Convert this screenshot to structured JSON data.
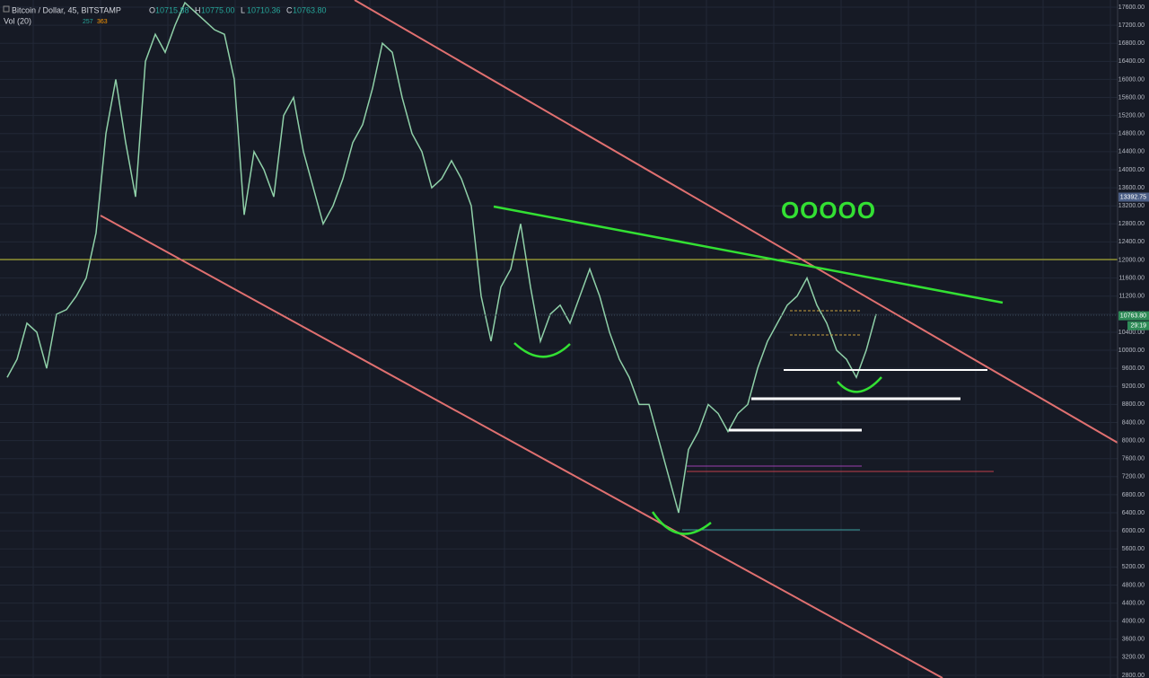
{
  "chart_data": {
    "type": "line",
    "title": "Bitcoin / Dollar, 45, BITSTAMP",
    "ohlc_keys": [
      "O",
      "H",
      "L",
      "C"
    ],
    "ohlc_values": [
      {
        "value": 10715.88,
        "label": "10715.88"
      },
      {
        "value": 10775.0,
        "label": "10775.00"
      },
      {
        "value": 10710.36,
        "label": "10710.36"
      },
      {
        "value": 10763.8,
        "label": "10763.80"
      }
    ],
    "volume_indicator": "Vol (20)",
    "volume_values": [
      257,
      363
    ],
    "annotation": "OOOOO",
    "color": "#8fd0a8",
    "values": [
      9400,
      9800,
      10600,
      10400,
      9600,
      10800,
      10900,
      11200,
      11600,
      12600,
      14800,
      16000,
      14600,
      13400,
      16400,
      17000,
      16600,
      17200,
      17700,
      17500,
      17300,
      17100,
      17000,
      16000,
      13000,
      14400,
      14000,
      13400,
      15200,
      15600,
      14400,
      13600,
      12800,
      13200,
      13800,
      14600,
      15000,
      15800,
      16800,
      16600,
      15600,
      14800,
      14400,
      13600,
      13800,
      14200,
      13800,
      13200,
      11200,
      10200,
      11400,
      11800,
      12800,
      11400,
      10200,
      10800,
      11000,
      10600,
      11200,
      11800,
      11200,
      10400,
      9800,
      9400,
      8800,
      8800,
      8000,
      7200,
      6400,
      7800,
      8200,
      8800,
      8600,
      8200,
      8600,
      8800,
      9600,
      10200,
      10600,
      11000,
      11200,
      11600,
      11000,
      10600,
      10000,
      9800,
      9400,
      10000,
      10800
    ],
    "ylim": [
      2800,
      17600
    ],
    "yticks": [
      {
        "value": 2800,
        "label": "2800.00"
      },
      {
        "value": 3200,
        "label": "3200.00"
      },
      {
        "value": 3600,
        "label": "3600.00"
      },
      {
        "value": 4000,
        "label": "4000.00"
      },
      {
        "value": 4400,
        "label": "4400.00"
      },
      {
        "value": 4800,
        "label": "4800.00"
      },
      {
        "value": 5200,
        "label": "5200.00"
      },
      {
        "value": 5600,
        "label": "5600.00"
      },
      {
        "value": 6000,
        "label": "6000.00"
      },
      {
        "value": 6400,
        "label": "6400.00"
      },
      {
        "value": 6800,
        "label": "6800.00"
      },
      {
        "value": 7200,
        "label": "7200.00"
      },
      {
        "value": 7600,
        "label": "7600.00"
      },
      {
        "value": 8000,
        "label": "8000.00"
      },
      {
        "value": 8400,
        "label": "8400.00"
      },
      {
        "value": 8800,
        "label": "8800.00"
      },
      {
        "value": 9200,
        "label": "9200.00"
      },
      {
        "value": 9600,
        "label": "9600.00"
      },
      {
        "value": 10000,
        "label": "10000.00"
      },
      {
        "value": 10400,
        "label": "10400.00"
      },
      {
        "value": 10800,
        "label": "10800.00"
      },
      {
        "value": 11200,
        "label": "11200.00"
      },
      {
        "value": 11600,
        "label": "11600.00"
      },
      {
        "value": 12000,
        "label": "12000.00"
      },
      {
        "value": 12400,
        "label": "12400.00"
      },
      {
        "value": 12800,
        "label": "12800.00"
      },
      {
        "value": 13200,
        "label": "13200.00"
      },
      {
        "value": 13600,
        "label": "13600.00"
      },
      {
        "value": 14000,
        "label": "14000.00"
      },
      {
        "value": 14400,
        "label": "14400.00"
      },
      {
        "value": 14800,
        "label": "14800.00"
      },
      {
        "value": 15200,
        "label": "15200.00"
      },
      {
        "value": 15600,
        "label": "15600.00"
      },
      {
        "value": 16000,
        "label": "16000.00"
      },
      {
        "value": 16400,
        "label": "16400.00"
      },
      {
        "value": 16800,
        "label": "16800.00"
      },
      {
        "value": 17200,
        "label": "17200.00"
      },
      {
        "value": 17600,
        "label": "17600.00"
      }
    ],
    "price_tags": [
      {
        "value": 13392.75,
        "label": "13392.75",
        "color": "#4c5f86"
      },
      {
        "value": 10763.8,
        "label": "10763.80",
        "color": "#2e8b57"
      }
    ],
    "countdown": "29:19",
    "grid": true
  }
}
